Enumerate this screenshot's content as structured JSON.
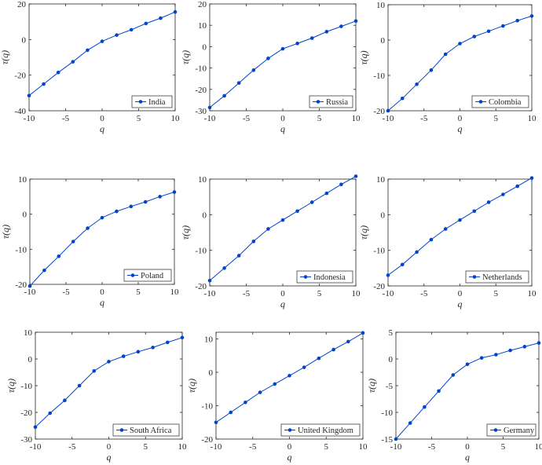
{
  "colors": {
    "series": "#0044cc",
    "axis": "#262626"
  },
  "chart_data": [
    {
      "type": "line",
      "xlabel": "q",
      "ylabel": "τ(q)",
      "legend": "India",
      "legend_position": "bottom-right",
      "xlim": [
        -10,
        10
      ],
      "ylim": [
        -40,
        20
      ],
      "xticks": [
        -10,
        -5,
        0,
        5,
        10
      ],
      "yticks": [
        -40,
        -20,
        0,
        20
      ],
      "x": [
        -10,
        -8,
        -6,
        -4,
        -2,
        0,
        2,
        4,
        6,
        8,
        10
      ],
      "y": [
        -31.5,
        -25,
        -18.5,
        -12.5,
        -6,
        -1,
        2.5,
        5.5,
        9,
        12,
        15.5
      ]
    },
    {
      "type": "line",
      "xlabel": "q",
      "ylabel": "τ(q)",
      "legend": "Russia",
      "legend_position": "bottom-right",
      "xlim": [
        -10,
        10
      ],
      "ylim": [
        -30,
        20
      ],
      "xticks": [
        -10,
        -5,
        0,
        5,
        10
      ],
      "yticks": [
        -30,
        -20,
        -10,
        0,
        10,
        20
      ],
      "x": [
        -10,
        -8,
        -6,
        -4,
        -2,
        0,
        2,
        4,
        6,
        8,
        10
      ],
      "y": [
        -28.5,
        -23,
        -17,
        -11,
        -5.5,
        -1,
        1.5,
        4,
        7,
        9.5,
        12
      ]
    },
    {
      "type": "line",
      "xlabel": "q",
      "ylabel": "τ(q)",
      "legend": "Colombia",
      "legend_position": "bottom-right",
      "xlim": [
        -10,
        10
      ],
      "ylim": [
        -20,
        10
      ],
      "xticks": [
        -10,
        -5,
        0,
        5,
        10
      ],
      "yticks": [
        -20,
        -10,
        0,
        10
      ],
      "x": [
        -10,
        -8,
        -6,
        -4,
        -2,
        0,
        2,
        4,
        6,
        8,
        10
      ],
      "y": [
        -20,
        -16.5,
        -12.5,
        -8.5,
        -4,
        -1,
        1,
        2.5,
        4,
        5.5,
        6.8
      ]
    },
    {
      "type": "line",
      "xlabel": "q",
      "ylabel": "τ(q)",
      "legend": "Poland",
      "legend_position": "bottom-right",
      "xlim": [
        -10,
        10
      ],
      "ylim": [
        -20,
        10
      ],
      "xticks": [
        -10,
        -5,
        0,
        5,
        10
      ],
      "yticks": [
        -20,
        -10,
        0,
        10
      ],
      "x": [
        -10,
        -8,
        -6,
        -4,
        -2,
        0,
        2,
        4,
        6,
        8,
        10
      ],
      "y": [
        -20.5,
        -16,
        -12,
        -7.8,
        -4,
        -1,
        0.8,
        2.2,
        3.5,
        5,
        6.3
      ]
    },
    {
      "type": "line",
      "xlabel": "q",
      "ylabel": "τ(q)",
      "legend": "Indonesia",
      "legend_position": "bottom-right",
      "xlim": [
        -10,
        10
      ],
      "ylim": [
        -20,
        10
      ],
      "xticks": [
        -10,
        -5,
        0,
        5,
        10
      ],
      "yticks": [
        -20,
        -10,
        0,
        10
      ],
      "x": [
        -10,
        -8,
        -6,
        -4,
        -2,
        0,
        2,
        4,
        6,
        8,
        10
      ],
      "y": [
        -18.5,
        -15,
        -11.5,
        -7.5,
        -4,
        -1.5,
        1,
        3.5,
        6,
        8.5,
        10.8
      ]
    },
    {
      "type": "line",
      "xlabel": "q",
      "ylabel": "τ(q)",
      "legend": "Netherlands",
      "legend_position": "bottom-right",
      "xlim": [
        -10,
        10
      ],
      "ylim": [
        -20,
        10
      ],
      "xticks": [
        -10,
        -5,
        0,
        5,
        10
      ],
      "yticks": [
        -20,
        -10,
        0,
        10
      ],
      "x": [
        -10,
        -8,
        -6,
        -4,
        -2,
        0,
        2,
        4,
        6,
        8,
        10
      ],
      "y": [
        -17,
        -14,
        -10.5,
        -7,
        -4,
        -1.5,
        1,
        3.5,
        5.7,
        8,
        10.3
      ]
    },
    {
      "type": "line",
      "xlabel": "q",
      "ylabel": "τ(q)",
      "legend": "South Africa",
      "legend_position": "bottom-right",
      "xlim": [
        -10,
        10
      ],
      "ylim": [
        -30,
        10
      ],
      "xticks": [
        -10,
        -5,
        0,
        5,
        10
      ],
      "yticks": [
        -30,
        -20,
        -10,
        0,
        10
      ],
      "x": [
        -10,
        -8,
        -6,
        -4,
        -2,
        0,
        2,
        4,
        6,
        8,
        10
      ],
      "y": [
        -25.5,
        -20.3,
        -15.5,
        -10,
        -4.5,
        -1,
        1,
        2.7,
        4.3,
        6.2,
        8
      ]
    },
    {
      "type": "line",
      "xlabel": "q",
      "ylabel": "τ(q)",
      "legend": "United Kingdom",
      "legend_position": "bottom-right",
      "xlim": [
        -10,
        10
      ],
      "ylim": [
        -20,
        12
      ],
      "xticks": [
        -10,
        -5,
        0,
        5,
        10
      ],
      "yticks": [
        -20,
        -10,
        0,
        10
      ],
      "x": [
        -10,
        -8,
        -6,
        -4,
        -2,
        0,
        2,
        4,
        6,
        8,
        10
      ],
      "y": [
        -15,
        -12,
        -9,
        -6,
        -3.5,
        -1,
        1.5,
        4.2,
        6.8,
        9.2,
        11.8
      ]
    },
    {
      "type": "line",
      "xlabel": "q",
      "ylabel": "τ(q)",
      "legend": "Germany",
      "legend_position": "bottom-right",
      "xlim": [
        -10,
        10
      ],
      "ylim": [
        -15,
        5
      ],
      "xticks": [
        -10,
        -5,
        0,
        5,
        10
      ],
      "yticks": [
        -15,
        -10,
        -5,
        0,
        5
      ],
      "x": [
        -10,
        -8,
        -6,
        -4,
        -2,
        0,
        2,
        4,
        6,
        8,
        10
      ],
      "y": [
        -15,
        -12,
        -9,
        -6,
        -3,
        -1,
        0.2,
        0.8,
        1.6,
        2.3,
        3
      ]
    }
  ]
}
